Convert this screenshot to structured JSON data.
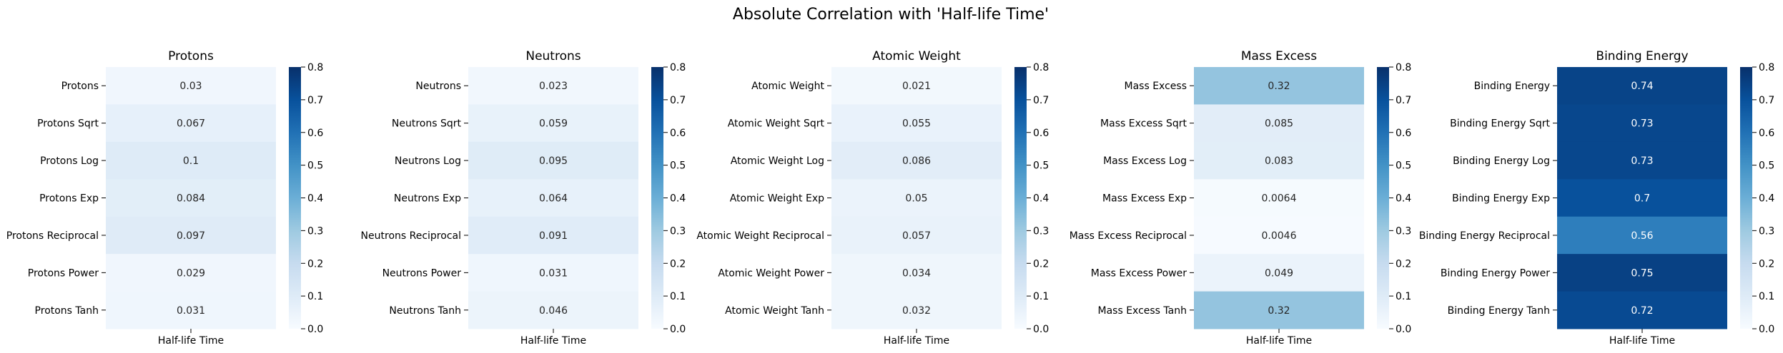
{
  "figure": {
    "suptitle": "Absolute Correlation with 'Half-life Time'"
  },
  "colormap": {
    "name": "Blues",
    "stops": [
      "#f7fbff",
      "#deebf7",
      "#c6dbef",
      "#9ecae1",
      "#6baed6",
      "#4292c6",
      "#2171b5",
      "#08519c",
      "#08306b"
    ]
  },
  "chart_data": [
    {
      "type": "heatmap",
      "title": "Protons",
      "xlabel": "Half-life Time",
      "rows": [
        "Protons",
        "Protons Sqrt",
        "Protons Log",
        "Protons Exp",
        "Protons Reciprocal",
        "Protons Power",
        "Protons Tanh"
      ],
      "values": [
        0.03,
        0.067,
        0.1,
        0.084,
        0.097,
        0.029,
        0.031
      ],
      "labels": [
        "0.03",
        "0.067",
        "0.1",
        "0.084",
        "0.097",
        "0.029",
        "0.031"
      ],
      "vmin": 0,
      "vmax": 0.8,
      "colorbar_ticks": [
        "0.0",
        "0.1",
        "0.2",
        "0.3",
        "0.4",
        "0.5",
        "0.6",
        "0.7",
        "0.8"
      ]
    },
    {
      "type": "heatmap",
      "title": "Neutrons",
      "xlabel": "Half-life Time",
      "rows": [
        "Neutrons",
        "Neutrons Sqrt",
        "Neutrons Log",
        "Neutrons Exp",
        "Neutrons Reciprocal",
        "Neutrons Power",
        "Neutrons Tanh"
      ],
      "values": [
        0.023,
        0.059,
        0.095,
        0.064,
        0.091,
        0.031,
        0.046
      ],
      "labels": [
        "0.023",
        "0.059",
        "0.095",
        "0.064",
        "0.091",
        "0.031",
        "0.046"
      ],
      "vmin": 0,
      "vmax": 0.8,
      "colorbar_ticks": [
        "0.0",
        "0.1",
        "0.2",
        "0.3",
        "0.4",
        "0.5",
        "0.6",
        "0.7",
        "0.8"
      ]
    },
    {
      "type": "heatmap",
      "title": "Atomic Weight",
      "xlabel": "Half-life Time",
      "rows": [
        "Atomic Weight",
        "Atomic Weight Sqrt",
        "Atomic Weight Log",
        "Atomic Weight Exp",
        "Atomic Weight Reciprocal",
        "Atomic Weight Power",
        "Atomic Weight Tanh"
      ],
      "values": [
        0.021,
        0.055,
        0.086,
        0.05,
        0.057,
        0.034,
        0.032
      ],
      "labels": [
        "0.021",
        "0.055",
        "0.086",
        "0.05",
        "0.057",
        "0.034",
        "0.032"
      ],
      "vmin": 0,
      "vmax": 0.8,
      "colorbar_ticks": [
        "0.0",
        "0.1",
        "0.2",
        "0.3",
        "0.4",
        "0.5",
        "0.6",
        "0.7",
        "0.8"
      ]
    },
    {
      "type": "heatmap",
      "title": "Mass Excess",
      "xlabel": "Half-life Time",
      "rows": [
        "Mass Excess",
        "Mass Excess Sqrt",
        "Mass Excess Log",
        "Mass Excess Exp",
        "Mass Excess Reciprocal",
        "Mass Excess Power",
        "Mass Excess Tanh"
      ],
      "values": [
        0.32,
        0.085,
        0.083,
        0.0064,
        0.0046,
        0.049,
        0.32
      ],
      "labels": [
        "0.32",
        "0.085",
        "0.083",
        "0.0064",
        "0.0046",
        "0.049",
        "0.32"
      ],
      "vmin": 0,
      "vmax": 0.8,
      "colorbar_ticks": [
        "0.0",
        "0.1",
        "0.2",
        "0.3",
        "0.4",
        "0.5",
        "0.6",
        "0.7",
        "0.8"
      ]
    },
    {
      "type": "heatmap",
      "title": "Binding Energy",
      "xlabel": "Half-life Time",
      "rows": [
        "Binding Energy",
        "Binding Energy Sqrt",
        "Binding Energy Log",
        "Binding Energy Exp",
        "Binding Energy Reciprocal",
        "Binding Energy Power",
        "Binding Energy Tanh"
      ],
      "values": [
        0.74,
        0.73,
        0.73,
        0.7,
        0.56,
        0.75,
        0.72
      ],
      "labels": [
        "0.74",
        "0.73",
        "0.73",
        "0.7",
        "0.56",
        "0.75",
        "0.72"
      ],
      "vmin": 0,
      "vmax": 0.8,
      "colorbar_ticks": [
        "0.0",
        "0.1",
        "0.2",
        "0.3",
        "0.4",
        "0.5",
        "0.6",
        "0.7",
        "0.8"
      ]
    }
  ]
}
